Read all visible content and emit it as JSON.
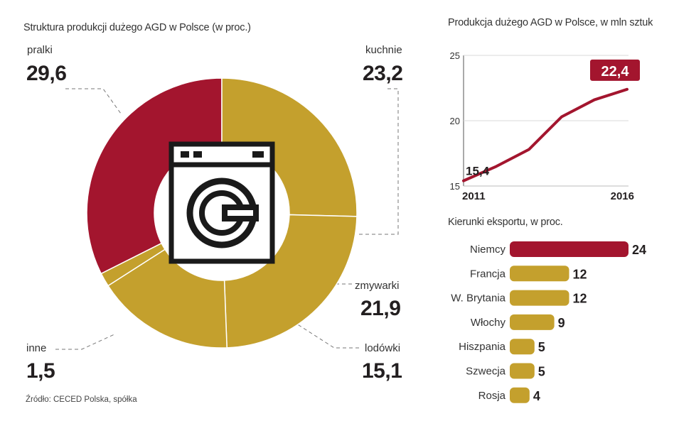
{
  "colors": {
    "primary": "#a3152e",
    "secondary": "#c4a02d",
    "line": "#a3152e"
  },
  "icon": "washing-machine-icon",
  "chart_data": [
    {
      "type": "pie",
      "variant": "donut",
      "title": "Struktura produkcji dużego AGD w Polsce (w proc.)",
      "categories": [
        "pralki",
        "kuchnie",
        "zmywarki",
        "lodówki",
        "inne"
      ],
      "values": [
        29.6,
        23.2,
        21.9,
        15.1,
        1.5
      ],
      "value_labels": [
        "29,6",
        "23,2",
        "21,9",
        "15,1",
        "1,5"
      ]
    },
    {
      "type": "line",
      "title": "Produkcja dużego AGD w Polsce, w mln sztuk",
      "x": [
        2011,
        2012,
        2013,
        2014,
        2015,
        2016
      ],
      "values": [
        15.4,
        16.5,
        17.8,
        20.3,
        21.6,
        22.4
      ],
      "ylim": [
        15,
        25
      ],
      "yticks": [
        "15",
        "20",
        "25"
      ],
      "xticks": [
        "2011",
        "2016"
      ],
      "start_label": "15,4",
      "end_label": "22,4"
    },
    {
      "type": "bar",
      "orientation": "horizontal",
      "title": "Kierunki eksportu, w proc.",
      "categories": [
        "Niemcy",
        "Francja",
        "W. Brytania",
        "Włochy",
        "Hiszpania",
        "Szwecja",
        "Rosja"
      ],
      "values": [
        24,
        12,
        12,
        9,
        5,
        5,
        4
      ],
      "value_labels": [
        "24",
        "12",
        "12",
        "9",
        "5",
        "5",
        "4"
      ]
    }
  ],
  "source": "Źródło: CECED Polska, spółka"
}
